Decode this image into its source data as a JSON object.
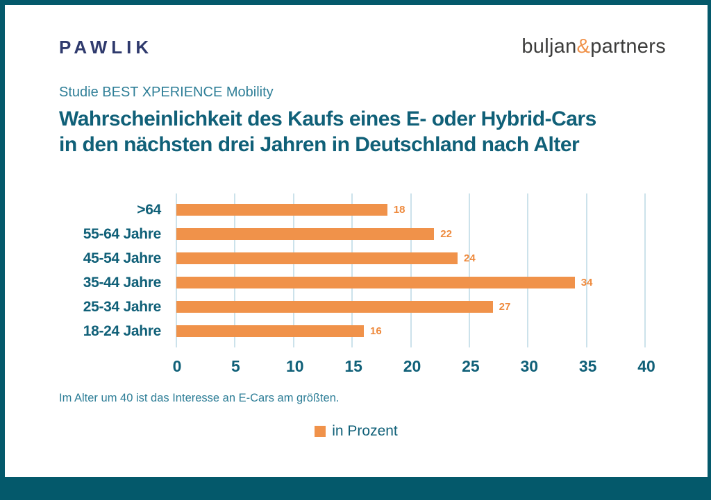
{
  "page": {
    "brand_left": "PAWLIK",
    "brand_right": {
      "part1": "buljan",
      "amp": "&",
      "part2": "partners"
    },
    "subtitle": "Studie BEST XPERIENCE Mobility",
    "title_line1": "Wahrscheinlichkeit des Kaufs eines E- oder Hybrid-Cars",
    "title_line2": "in den nächsten drei Jahren in Deutschland nach Alter",
    "footnote": "Im Alter um 40 ist das Interesse an E-Cars am größten.",
    "legend_label": "in Prozent"
  },
  "colors": {
    "frame": "#04596B",
    "title": "#106078",
    "subtitle": "#2E7E97",
    "bar": "#F0924A",
    "value_label": "#EE8A3D",
    "gridline": "#CCE2EB",
    "brand_left": "#2F3A6D",
    "brand_right": "#3C3C3B"
  },
  "chart_data": {
    "type": "bar",
    "orientation": "horizontal",
    "title": "Wahrscheinlichkeit des Kaufs eines E- oder Hybrid-Cars in den nächsten drei Jahren in Deutschland nach Alter",
    "subtitle": "Studie BEST XPERIENCE Mobility",
    "categories": [
      ">64",
      "55-64 Jahre",
      "45-54 Jahre",
      "35-44 Jahre",
      "25-34 Jahre",
      "18-24 Jahre"
    ],
    "values": [
      18,
      22,
      24,
      34,
      27,
      16
    ],
    "series_name": "in Prozent",
    "xlabel": "",
    "ylabel": "",
    "xlim": [
      0,
      40
    ],
    "xticks": [
      0,
      5,
      10,
      15,
      20,
      25,
      30,
      35,
      40
    ],
    "grid": true,
    "legend_position": "bottom-center",
    "annotation": "Im Alter um 40 ist das Interesse an E-Cars am größten."
  }
}
